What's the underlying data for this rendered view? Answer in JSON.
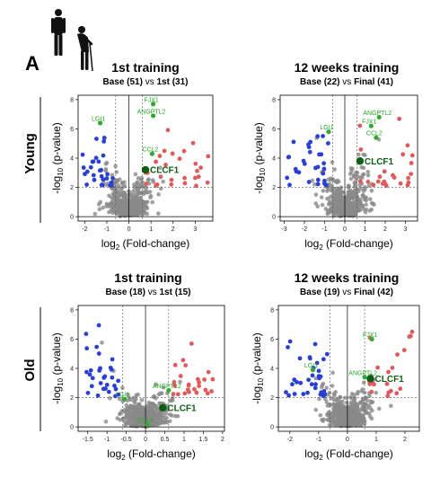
{
  "figure": {
    "panel_letter": "A",
    "row_labels": [
      "Young",
      "Old"
    ]
  },
  "colors": {
    "neutral": "#8a8a8a",
    "down": "#2a3fd4",
    "up": "#e05a5a",
    "highlight": "#34a832",
    "highlight_text": "#22aa22",
    "clcf1": "#0d5e12"
  },
  "chart_data": [
    {
      "type": "scatter",
      "title": "1st training",
      "subtitle_left": "Base (51)",
      "subtitle_vs": "vs",
      "subtitle_right": "1st (31)",
      "xlabel": "log2 (Fold-change)",
      "ylabel": "-log10 (p-value)",
      "xlim": [
        -2.3,
        3.8
      ],
      "ylim": [
        -0.3,
        8.3
      ],
      "xticks": [
        -2,
        -1,
        0,
        1,
        2,
        3
      ],
      "yticks": [
        0,
        2,
        4,
        6,
        8
      ],
      "h_threshold": 2,
      "v_thresholds": [
        -0.6,
        0.6
      ],
      "labeled_points": [
        {
          "label": "FJX1",
          "x": 1.1,
          "y": 7.7,
          "size": "small"
        },
        {
          "label": "ANGPTL2",
          "x": 1.1,
          "y": 6.9,
          "size": "small"
        },
        {
          "label": "LGI1",
          "x": -1.3,
          "y": 6.4,
          "size": "small"
        },
        {
          "label": "CCL2",
          "x": 1.05,
          "y": 4.3,
          "size": "small"
        },
        {
          "label": "CLCF1",
          "x": 0.75,
          "y": 3.2,
          "size": "big"
        }
      ],
      "seed": 11
    },
    {
      "type": "scatter",
      "title": "12 weeks training",
      "subtitle_left": "Base (22)",
      "subtitle_vs": "vs",
      "subtitle_right": "Final (41)",
      "xlabel": "log2 (Fold-change)",
      "ylabel": "-log10 (p-value)",
      "xlim": [
        -3.2,
        3.6
      ],
      "ylim": [
        -0.3,
        8.3
      ],
      "xticks": [
        -3,
        -2,
        -1,
        0,
        1,
        2,
        3
      ],
      "yticks": [
        0,
        2,
        4,
        6,
        8
      ],
      "h_threshold": 2,
      "v_thresholds": [
        -0.6,
        0.6
      ],
      "labeled_points": [
        {
          "label": "ANGPTL2",
          "x": 1.7,
          "y": 6.8,
          "size": "small"
        },
        {
          "label": "FJX1",
          "x": 1.3,
          "y": 6.2,
          "size": "small"
        },
        {
          "label": "LGI1",
          "x": -0.8,
          "y": 5.8,
          "size": "small"
        },
        {
          "label": "CCL2",
          "x": 1.55,
          "y": 5.4,
          "size": "small"
        },
        {
          "label": "CLCF1",
          "x": 0.75,
          "y": 3.8,
          "size": "big"
        }
      ],
      "seed": 23
    },
    {
      "type": "scatter",
      "title": "1st training",
      "subtitle_left": "Base (18)",
      "subtitle_vs": "vs",
      "subtitle_right": "1st (15)",
      "xlabel": "log2 (Fold-change)",
      "ylabel": "-log10 (p-value)",
      "xlim": [
        -1.75,
        2.05
      ],
      "ylim": [
        -0.3,
        8.3
      ],
      "xticks": [
        -1.5,
        -1.0,
        -0.5,
        0.0,
        0.5,
        1.0,
        1.5,
        2.0
      ],
      "yticks": [
        0,
        2,
        4,
        6,
        8
      ],
      "h_threshold": 2,
      "v_thresholds": [
        -0.6,
        0.6
      ],
      "labeled_points": [
        {
          "label": "ANGPTL2",
          "x": 0.6,
          "y": 2.5,
          "size": "small"
        },
        {
          "label": "LGI1",
          "x": -0.55,
          "y": 1.9,
          "size": "small"
        },
        {
          "label": "CLCF1",
          "x": 0.45,
          "y": 1.3,
          "size": "big"
        },
        {
          "label": "CCL2",
          "x": 0.05,
          "y": 0.15,
          "size": "small"
        }
      ],
      "seed": 37
    },
    {
      "type": "scatter",
      "title": "12 weeks training",
      "subtitle_left": "Base (19)",
      "subtitle_vs": "vs",
      "subtitle_right": "Final (42)",
      "xlabel": "log2 (Fold-change)",
      "ylabel": "-log10 (p-value)",
      "xlim": [
        -2.4,
        2.5
      ],
      "ylim": [
        -0.3,
        8.3
      ],
      "xticks": [
        -2,
        -1,
        0,
        1,
        2
      ],
      "yticks": [
        0,
        2,
        4,
        6,
        8
      ],
      "h_threshold": 2,
      "v_thresholds": [
        -0.6,
        0.6
      ],
      "labeled_points": [
        {
          "label": "FJX1",
          "x": 0.85,
          "y": 6.0,
          "size": "small"
        },
        {
          "label": "LGI1",
          "x": -1.2,
          "y": 3.9,
          "size": "small"
        },
        {
          "label": "ANGPTL2",
          "x": 0.6,
          "y": 3.4,
          "size": "small"
        },
        {
          "label": "CLCF1",
          "x": 0.8,
          "y": 3.3,
          "size": "big"
        }
      ],
      "seed": 51
    }
  ]
}
